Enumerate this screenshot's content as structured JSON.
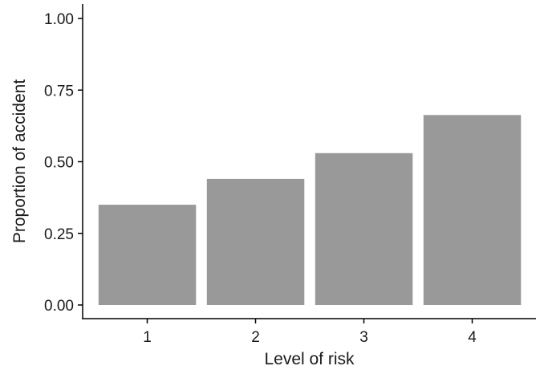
{
  "chart_data": {
    "type": "bar",
    "categories": [
      "1",
      "2",
      "3",
      "4"
    ],
    "values": [
      0.35,
      0.44,
      0.53,
      0.663
    ],
    "title": "",
    "xlabel": "Level of risk",
    "ylabel": "Proportion of accident",
    "ylim": [
      0,
      1
    ],
    "yticks": [
      "0.00",
      "0.25",
      "0.50",
      "0.75",
      "1.00"
    ],
    "grid": false,
    "legend": "none",
    "bar_color": "#999999",
    "axis_color": "#000000"
  }
}
